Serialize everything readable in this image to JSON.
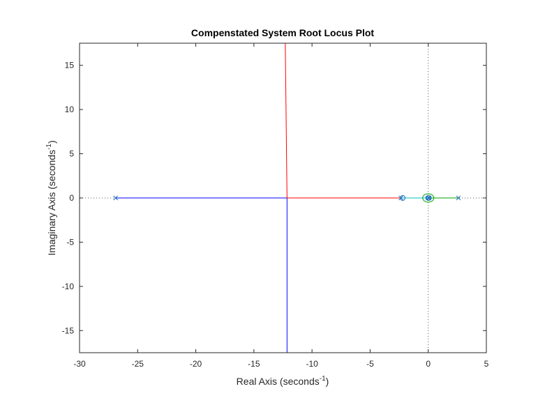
{
  "chart_data": {
    "type": "scatter",
    "title": "Compenstated System Root Locus Plot",
    "xlabel": {
      "text": "Real Axis (seconds",
      "sup": "-1",
      "end": ")"
    },
    "ylabel": {
      "text": "Imaginary Axis (seconds",
      "sup": "-1",
      "end": ")"
    },
    "xlim": [
      -30,
      5
    ],
    "ylim": [
      -17.5,
      17.5
    ],
    "xticks": [
      -30,
      -25,
      -20,
      -15,
      -10,
      -5,
      0,
      5
    ],
    "xtick_labels": [
      "-30",
      "-25",
      "-20",
      "-15",
      "-10",
      "-5",
      "0",
      "5"
    ],
    "yticks": [
      -15,
      -10,
      -5,
      0,
      5,
      10,
      15
    ],
    "ytick_labels": [
      "-15",
      "-10",
      "-5",
      "0",
      "5",
      "10",
      "15"
    ],
    "grid": false,
    "reference_lines": [
      {
        "axis": "x",
        "value": 0,
        "style": "dotted",
        "color": "#555555"
      },
      {
        "axis": "y",
        "value": 0,
        "style": "dotted",
        "color": "#555555"
      }
    ],
    "branches": [
      {
        "color": "#0000ff",
        "points": [
          [
            -26.9,
            0
          ],
          [
            -12.15,
            0
          ],
          [
            -12.15,
            -17.5
          ]
        ]
      },
      {
        "color": "#ff0000",
        "points": [
          [
            -2.35,
            0
          ],
          [
            -12.15,
            0
          ],
          [
            -12.3,
            17.5
          ]
        ]
      },
      {
        "color": "#00a000",
        "points": [
          [
            2.6,
            0
          ],
          [
            0.05,
            0
          ]
        ]
      },
      {
        "color": "#00bfbf",
        "points": [
          [
            -2.4,
            0
          ],
          [
            -0.1,
            0
          ]
        ]
      }
    ],
    "poles": [
      {
        "x": -26.9,
        "y": 0
      },
      {
        "x": -2.35,
        "y": 0
      },
      {
        "x": 0,
        "y": 0
      },
      {
        "x": 0.05,
        "y": 0
      },
      {
        "x": 2.6,
        "y": 0
      }
    ],
    "zeros": [
      {
        "x": -2.2,
        "y": 0
      },
      {
        "x": 0,
        "y": 0
      },
      {
        "x": 0.05,
        "y": 0
      }
    ],
    "colors": {
      "pole_zero": "#1f6fbf",
      "axes_box": "#262626",
      "small_loop": "#00a000"
    }
  }
}
